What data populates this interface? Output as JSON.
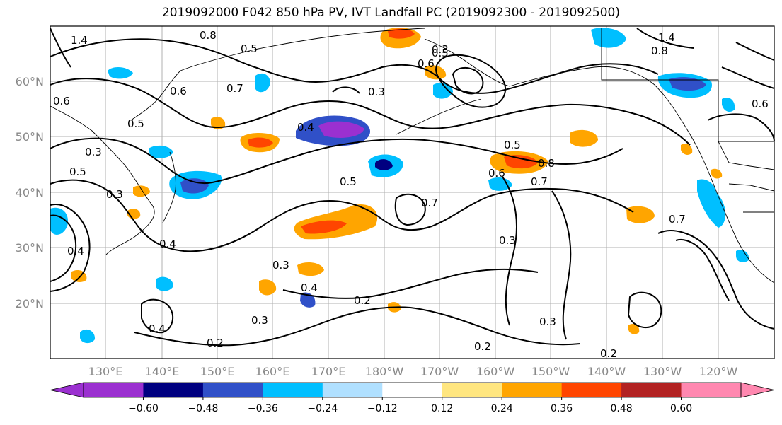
{
  "title": "2019092000 F042 850 hPa PV, IVT Landfall PC (2019092300 - 2019092500)",
  "lat_labels": [
    "60°N",
    "50°N",
    "40°N",
    "30°N",
    "20°N"
  ],
  "lon_labels": [
    "130°E",
    "140°E",
    "150°E",
    "160°E",
    "170°E",
    "180°W",
    "170°W",
    "160°W",
    "150°W",
    "140°W",
    "130°W",
    "120°W"
  ],
  "colorbar": {
    "tick_labels": [
      "−0.60",
      "−0.48",
      "−0.36",
      "−0.24",
      "−0.12",
      "0.12",
      "0.24",
      "0.36",
      "0.48",
      "0.60"
    ],
    "colors": [
      "#9b30d0",
      "#000080",
      "#3050c8",
      "#00bfff",
      "#b0e0ff",
      "#ffffff",
      "#ffe680",
      "#ffa500",
      "#ff4500",
      "#b22222",
      "#ff88b0"
    ]
  },
  "contour_labels": [
    "0.8",
    "0.5",
    "1.4",
    "0.7",
    "0.6",
    "0.3",
    "0.4",
    "0.5",
    "0.6",
    "0.3",
    "0.5",
    "0.8",
    "0.7",
    "0.6",
    "0.5",
    "0.7",
    "0.3",
    "0.3",
    "0.4",
    "0.4",
    "0.3",
    "0.2",
    "0.2",
    "0.3",
    "0.2",
    "0.6",
    "0.8",
    "0.7",
    "1.4",
    "0.3",
    "0.4",
    "0.5",
    "0.6",
    "0.5",
    "0.4",
    "0.3",
    "0.2"
  ]
}
